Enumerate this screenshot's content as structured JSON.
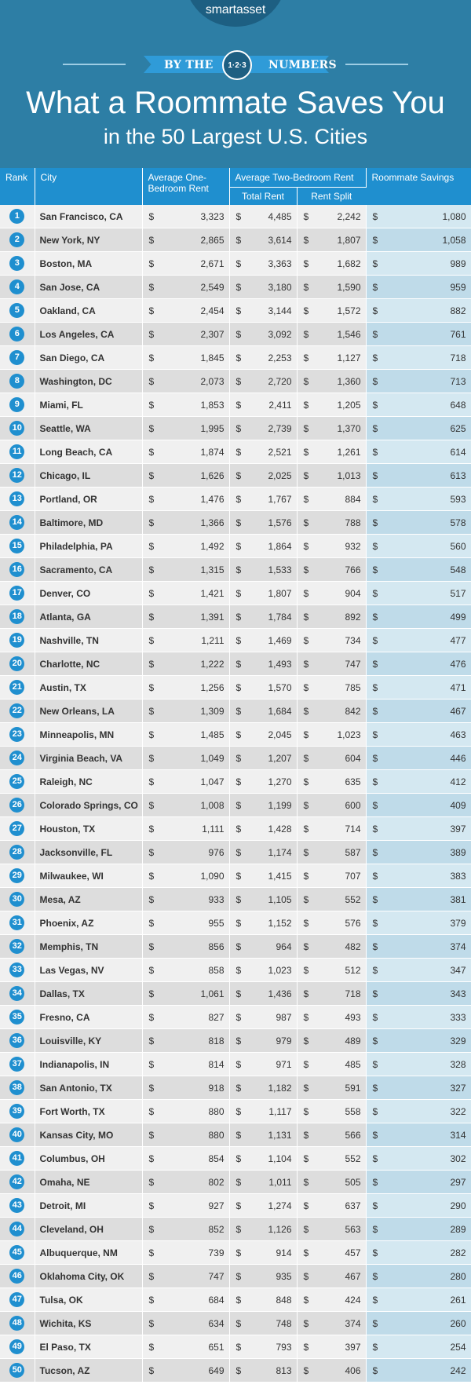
{
  "header": {
    "logo": "smartasset",
    "ribbon_left": "BY THE",
    "ribbon_badge": "1·2·3",
    "ribbon_right": "NUMBERS",
    "title": "What a Roommate Saves You",
    "subtitle": "in the 50 Largest U.S. Cities"
  },
  "colors": {
    "header_bg": "#2d7ea5",
    "accent_blue": "#1f8fcf",
    "savings_column": "#d4e8f1"
  },
  "table": {
    "headers": {
      "rank": "Rank",
      "city": "City",
      "one_bedroom": "Average One-Bedroom Rent",
      "two_bedroom_group": "Average Two-Bedroom Rent",
      "total_rent": "Total Rent",
      "rent_split": "Rent Split",
      "savings": "Roommate Savings"
    }
  },
  "chart_data": {
    "type": "table",
    "title": "What a Roommate Saves You in the 50 Largest U.S. Cities",
    "columns": [
      "Rank",
      "City",
      "Average One-Bedroom Rent",
      "Average Two-Bedroom Rent: Total Rent",
      "Average Two-Bedroom Rent: Rent Split",
      "Roommate Savings"
    ],
    "rows": [
      {
        "rank": "1",
        "city": "San Francisco, CA",
        "one_bed": "3,323",
        "total": "4,485",
        "split": "2,242",
        "savings": "1,080"
      },
      {
        "rank": "2",
        "city": "New York, NY",
        "one_bed": "2,865",
        "total": "3,614",
        "split": "1,807",
        "savings": "1,058"
      },
      {
        "rank": "3",
        "city": "Boston, MA",
        "one_bed": "2,671",
        "total": "3,363",
        "split": "1,682",
        "savings": "989"
      },
      {
        "rank": "4",
        "city": "San Jose, CA",
        "one_bed": "2,549",
        "total": "3,180",
        "split": "1,590",
        "savings": "959"
      },
      {
        "rank": "5",
        "city": "Oakland, CA",
        "one_bed": "2,454",
        "total": "3,144",
        "split": "1,572",
        "savings": "882"
      },
      {
        "rank": "6",
        "city": "Los Angeles, CA",
        "one_bed": "2,307",
        "total": "3,092",
        "split": "1,546",
        "savings": "761"
      },
      {
        "rank": "7",
        "city": "San Diego, CA",
        "one_bed": "1,845",
        "total": "2,253",
        "split": "1,127",
        "savings": "718"
      },
      {
        "rank": "8",
        "city": "Washington, DC",
        "one_bed": "2,073",
        "total": "2,720",
        "split": "1,360",
        "savings": "713"
      },
      {
        "rank": "9",
        "city": "Miami, FL",
        "one_bed": "1,853",
        "total": "2,411",
        "split": "1,205",
        "savings": "648"
      },
      {
        "rank": "10",
        "city": "Seattle, WA",
        "one_bed": "1,995",
        "total": "2,739",
        "split": "1,370",
        "savings": "625"
      },
      {
        "rank": "11",
        "city": "Long Beach, CA",
        "one_bed": "1,874",
        "total": "2,521",
        "split": "1,261",
        "savings": "614"
      },
      {
        "rank": "12",
        "city": "Chicago, IL",
        "one_bed": "1,626",
        "total": "2,025",
        "split": "1,013",
        "savings": "613"
      },
      {
        "rank": "13",
        "city": "Portland, OR",
        "one_bed": "1,476",
        "total": "1,767",
        "split": "884",
        "savings": "593"
      },
      {
        "rank": "14",
        "city": "Baltimore, MD",
        "one_bed": "1,366",
        "total": "1,576",
        "split": "788",
        "savings": "578"
      },
      {
        "rank": "15",
        "city": "Philadelphia, PA",
        "one_bed": "1,492",
        "total": "1,864",
        "split": "932",
        "savings": "560"
      },
      {
        "rank": "16",
        "city": "Sacramento, CA",
        "one_bed": "1,315",
        "total": "1,533",
        "split": "766",
        "savings": "548"
      },
      {
        "rank": "17",
        "city": "Denver, CO",
        "one_bed": "1,421",
        "total": "1,807",
        "split": "904",
        "savings": "517"
      },
      {
        "rank": "18",
        "city": "Atlanta, GA",
        "one_bed": "1,391",
        "total": "1,784",
        "split": "892",
        "savings": "499"
      },
      {
        "rank": "19",
        "city": "Nashville, TN",
        "one_bed": "1,211",
        "total": "1,469",
        "split": "734",
        "savings": "477"
      },
      {
        "rank": "20",
        "city": "Charlotte, NC",
        "one_bed": "1,222",
        "total": "1,493",
        "split": "747",
        "savings": "476"
      },
      {
        "rank": "21",
        "city": "Austin, TX",
        "one_bed": "1,256",
        "total": "1,570",
        "split": "785",
        "savings": "471"
      },
      {
        "rank": "22",
        "city": "New Orleans, LA",
        "one_bed": "1,309",
        "total": "1,684",
        "split": "842",
        "savings": "467"
      },
      {
        "rank": "23",
        "city": "Minneapolis, MN",
        "one_bed": "1,485",
        "total": "2,045",
        "split": "1,023",
        "savings": "463"
      },
      {
        "rank": "24",
        "city": "Virginia Beach, VA",
        "one_bed": "1,049",
        "total": "1,207",
        "split": "604",
        "savings": "446"
      },
      {
        "rank": "25",
        "city": "Raleigh, NC",
        "one_bed": "1,047",
        "total": "1,270",
        "split": "635",
        "savings": "412"
      },
      {
        "rank": "26",
        "city": "Colorado Springs, CO",
        "one_bed": "1,008",
        "total": "1,199",
        "split": "600",
        "savings": "409"
      },
      {
        "rank": "27",
        "city": "Houston, TX",
        "one_bed": "1,111",
        "total": "1,428",
        "split": "714",
        "savings": "397"
      },
      {
        "rank": "28",
        "city": "Jacksonville, FL",
        "one_bed": "976",
        "total": "1,174",
        "split": "587",
        "savings": "389"
      },
      {
        "rank": "29",
        "city": "Milwaukee, WI",
        "one_bed": "1,090",
        "total": "1,415",
        "split": "707",
        "savings": "383"
      },
      {
        "rank": "30",
        "city": "Mesa, AZ",
        "one_bed": "933",
        "total": "1,105",
        "split": "552",
        "savings": "381"
      },
      {
        "rank": "31",
        "city": "Phoenix, AZ",
        "one_bed": "955",
        "total": "1,152",
        "split": "576",
        "savings": "379"
      },
      {
        "rank": "32",
        "city": "Memphis, TN",
        "one_bed": "856",
        "total": "964",
        "split": "482",
        "savings": "374"
      },
      {
        "rank": "33",
        "city": "Las Vegas, NV",
        "one_bed": "858",
        "total": "1,023",
        "split": "512",
        "savings": "347"
      },
      {
        "rank": "34",
        "city": "Dallas, TX",
        "one_bed": "1,061",
        "total": "1,436",
        "split": "718",
        "savings": "343"
      },
      {
        "rank": "35",
        "city": "Fresno, CA",
        "one_bed": "827",
        "total": "987",
        "split": "493",
        "savings": "333"
      },
      {
        "rank": "36",
        "city": "Louisville, KY",
        "one_bed": "818",
        "total": "979",
        "split": "489",
        "savings": "329"
      },
      {
        "rank": "37",
        "city": "Indianapolis, IN",
        "one_bed": "814",
        "total": "971",
        "split": "485",
        "savings": "328"
      },
      {
        "rank": "38",
        "city": "San Antonio, TX",
        "one_bed": "918",
        "total": "1,182",
        "split": "591",
        "savings": "327"
      },
      {
        "rank": "39",
        "city": "Fort Worth, TX",
        "one_bed": "880",
        "total": "1,117",
        "split": "558",
        "savings": "322"
      },
      {
        "rank": "40",
        "city": "Kansas City, MO",
        "one_bed": "880",
        "total": "1,131",
        "split": "566",
        "savings": "314"
      },
      {
        "rank": "41",
        "city": "Columbus, OH",
        "one_bed": "854",
        "total": "1,104",
        "split": "552",
        "savings": "302"
      },
      {
        "rank": "42",
        "city": "Omaha, NE",
        "one_bed": "802",
        "total": "1,011",
        "split": "505",
        "savings": "297"
      },
      {
        "rank": "43",
        "city": "Detroit, MI",
        "one_bed": "927",
        "total": "1,274",
        "split": "637",
        "savings": "290"
      },
      {
        "rank": "44",
        "city": "Cleveland, OH",
        "one_bed": "852",
        "total": "1,126",
        "split": "563",
        "savings": "289"
      },
      {
        "rank": "45",
        "city": "Albuquerque, NM",
        "one_bed": "739",
        "total": "914",
        "split": "457",
        "savings": "282"
      },
      {
        "rank": "46",
        "city": "Oklahoma City, OK",
        "one_bed": "747",
        "total": "935",
        "split": "467",
        "savings": "280"
      },
      {
        "rank": "47",
        "city": "Tulsa, OK",
        "one_bed": "684",
        "total": "848",
        "split": "424",
        "savings": "261"
      },
      {
        "rank": "48",
        "city": "Wichita, KS",
        "one_bed": "634",
        "total": "748",
        "split": "374",
        "savings": "260"
      },
      {
        "rank": "49",
        "city": "El Paso, TX",
        "one_bed": "651",
        "total": "793",
        "split": "397",
        "savings": "254"
      },
      {
        "rank": "50",
        "city": "Tucson, AZ",
        "one_bed": "649",
        "total": "813",
        "split": "406",
        "savings": "242"
      }
    ]
  }
}
